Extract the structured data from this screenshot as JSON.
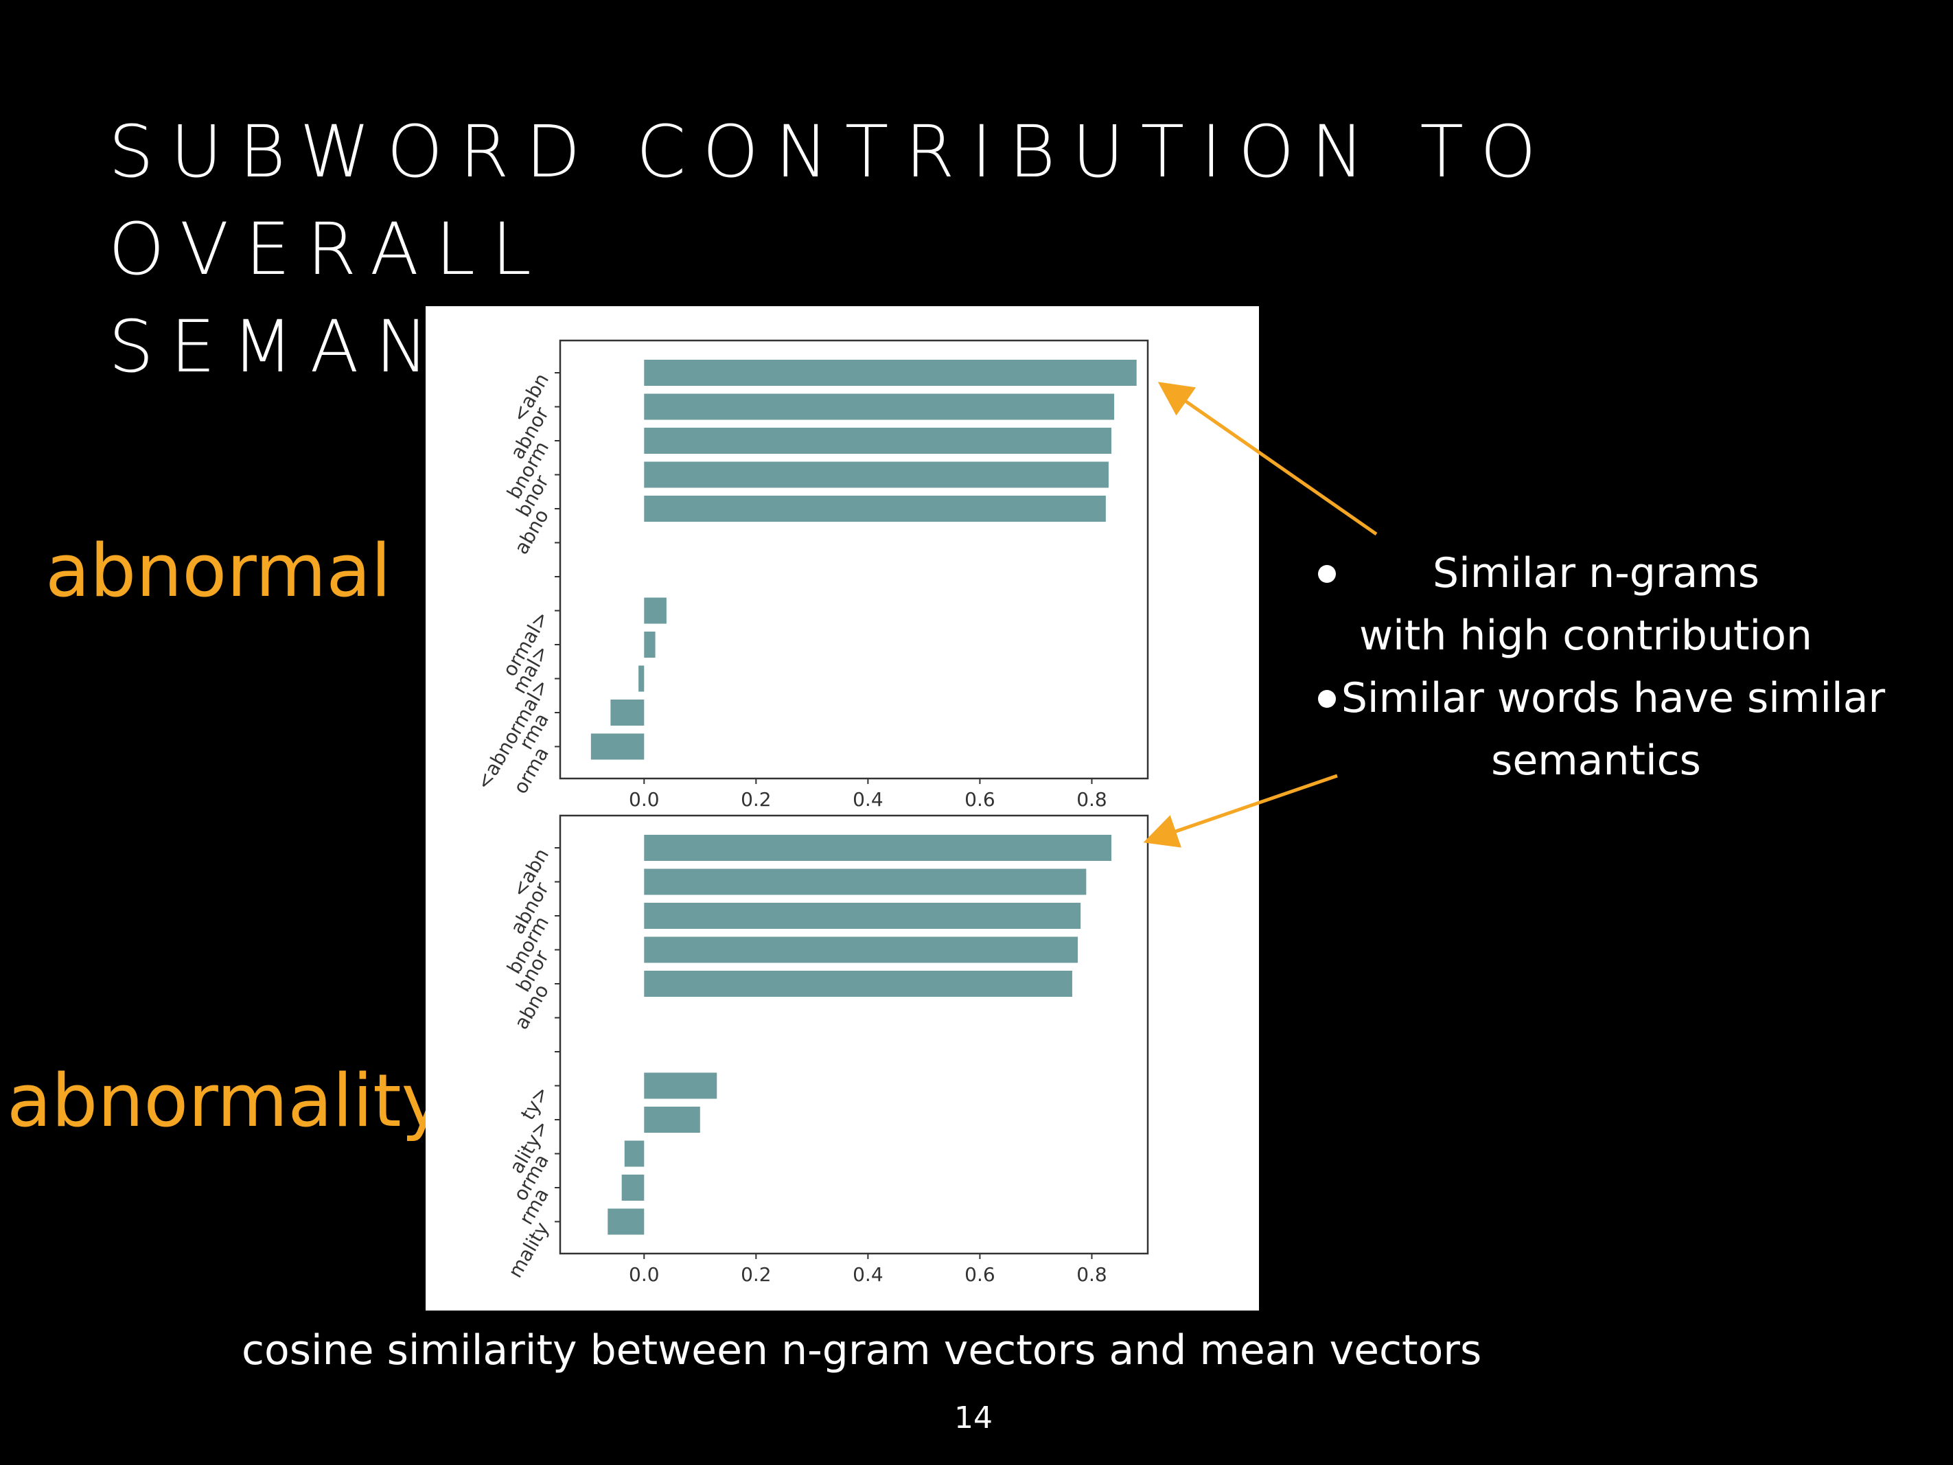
{
  "slide": {
    "title_line1": "SUBWORD CONTRIBUTION TO OVERALL",
    "title_line2": "SEMANTICS",
    "word_top": "abnormal",
    "word_bottom": "abnormality",
    "bullets": [
      {
        "line1": "Similar n-grams",
        "line2": "with high contribution"
      },
      {
        "line1": "Similar words have similar",
        "line2": "semantics"
      }
    ],
    "caption": "cosine similarity between n-gram vectors and mean vectors",
    "page_number": "14",
    "accent_color": "#f5a623",
    "bar_color": "#6d9c9e"
  },
  "chart_data": [
    {
      "type": "bar",
      "orientation": "horizontal",
      "categories": [
        "<abn",
        "abnor",
        "bnorm",
        "bnor",
        "abno",
        "",
        "",
        "ormal>",
        "mal>",
        "<abnormal>",
        "rma",
        "orma"
      ],
      "values": [
        0.88,
        0.84,
        0.835,
        0.83,
        0.825,
        null,
        null,
        0.04,
        0.02,
        -0.01,
        -0.06,
        -0.095
      ],
      "xlim": [
        -0.15,
        0.9
      ],
      "xticks": [
        "0.0",
        "0.2",
        "0.4",
        "0.6",
        "0.8"
      ],
      "xlabel": "",
      "ylabel": "",
      "title": ""
    },
    {
      "type": "bar",
      "orientation": "horizontal",
      "categories": [
        "<abn",
        "abnor",
        "bnorm",
        "bnor",
        "abno",
        "",
        "",
        "ty>",
        "ality>",
        "orma",
        "rma",
        "mality"
      ],
      "values": [
        0.835,
        0.79,
        0.78,
        0.775,
        0.765,
        null,
        null,
        0.13,
        0.1,
        -0.035,
        -0.04,
        -0.065
      ],
      "xlim": [
        -0.15,
        0.9
      ],
      "xticks": [
        "0.0",
        "0.2",
        "0.4",
        "0.6",
        "0.8"
      ],
      "xlabel": "",
      "ylabel": "",
      "title": ""
    }
  ]
}
